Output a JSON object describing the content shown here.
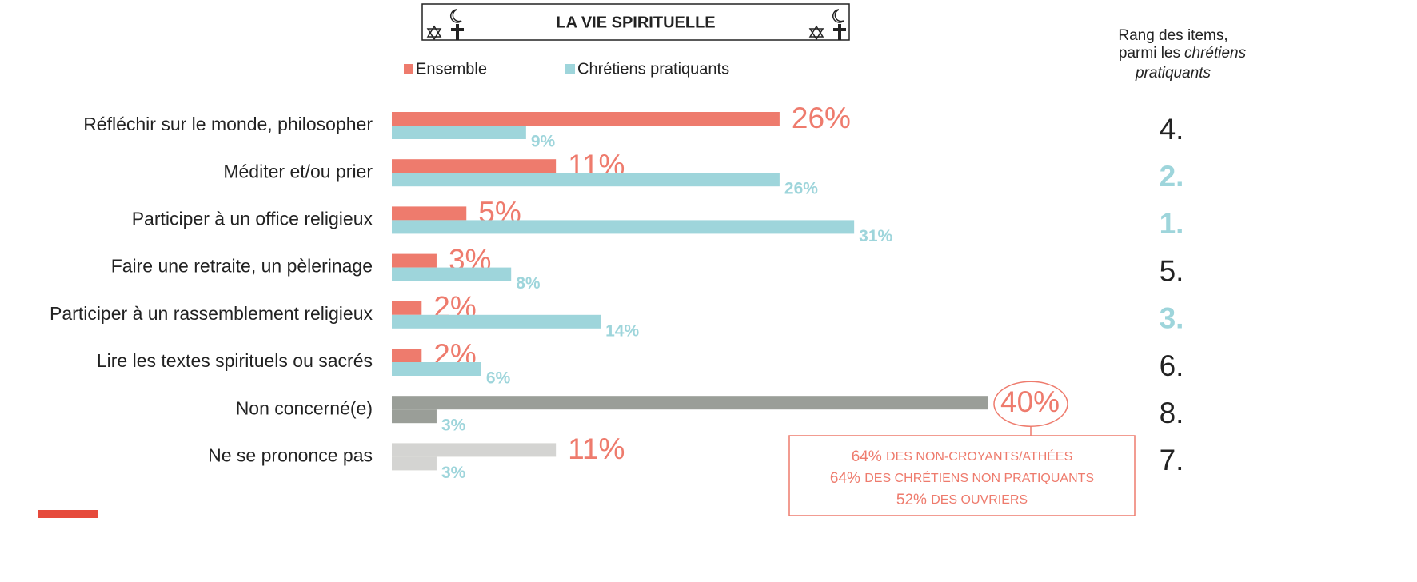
{
  "chart_data": {
    "type": "barh",
    "title": "LA  VIE SPIRITUELLE",
    "categories": [
      "Réfléchir sur le monde, philosopher",
      "Méditer et/ou prier",
      "Participer à un office religieux",
      "Faire une retraite, un pèlerinage",
      "Participer à un rassemblement religieux",
      "Lire les textes spirituels ou sacrés",
      "Non concerné(e)",
      "Ne se prononce pas"
    ],
    "series": [
      {
        "name": "Ensemble",
        "color": "#ee7b6d",
        "colors": [
          "#ee7b6d",
          "#ee7b6d",
          "#ee7b6d",
          "#ee7b6d",
          "#ee7b6d",
          "#ee7b6d",
          "#9a9e98",
          "#d4d4d2"
        ],
        "values": [
          26,
          11,
          5,
          3,
          2,
          2,
          40,
          11
        ],
        "value_labels": [
          "26%",
          "11%",
          "5%",
          "3%",
          "2%",
          "2%",
          "40%",
          "11%"
        ]
      },
      {
        "name": "Chrétiens pratiquants",
        "color": "#9ed5db",
        "colors": [
          "#9ed5db",
          "#9ed5db",
          "#9ed5db",
          "#9ed5db",
          "#9ed5db",
          "#9ed5db",
          "#9a9e98",
          "#d4d4d2"
        ],
        "values": [
          9,
          26,
          31,
          8,
          14,
          6,
          3,
          3
        ],
        "value_labels": [
          "9%",
          "26%",
          "31%",
          "8%",
          "14%",
          "6%",
          "3%",
          "3%"
        ]
      }
    ],
    "xlim": [
      0,
      40
    ],
    "rank_title": [
      "Rang des items,",
      "parmi les",
      "chrétiens",
      "pratiquants"
    ],
    "ranks": [
      "4.",
      "2.",
      "1.",
      "5.",
      "3.",
      "6.",
      "8.",
      "7."
    ],
    "rank_colors": [
      "#222222",
      "#9ed5db",
      "#9ed5db",
      "#222222",
      "#9ed5db",
      "#222222",
      "#222222",
      "#222222"
    ],
    "annotation": [
      {
        "value_label": "64%",
        "text": "DES NON-CROYANTS/ATHÉES"
      },
      {
        "value_label": "64%",
        "text": "DES CHRÉTIENS NON PRATIQUANTS"
      },
      {
        "value_label": "52%",
        "text": "DES OUVRIERS"
      }
    ]
  }
}
